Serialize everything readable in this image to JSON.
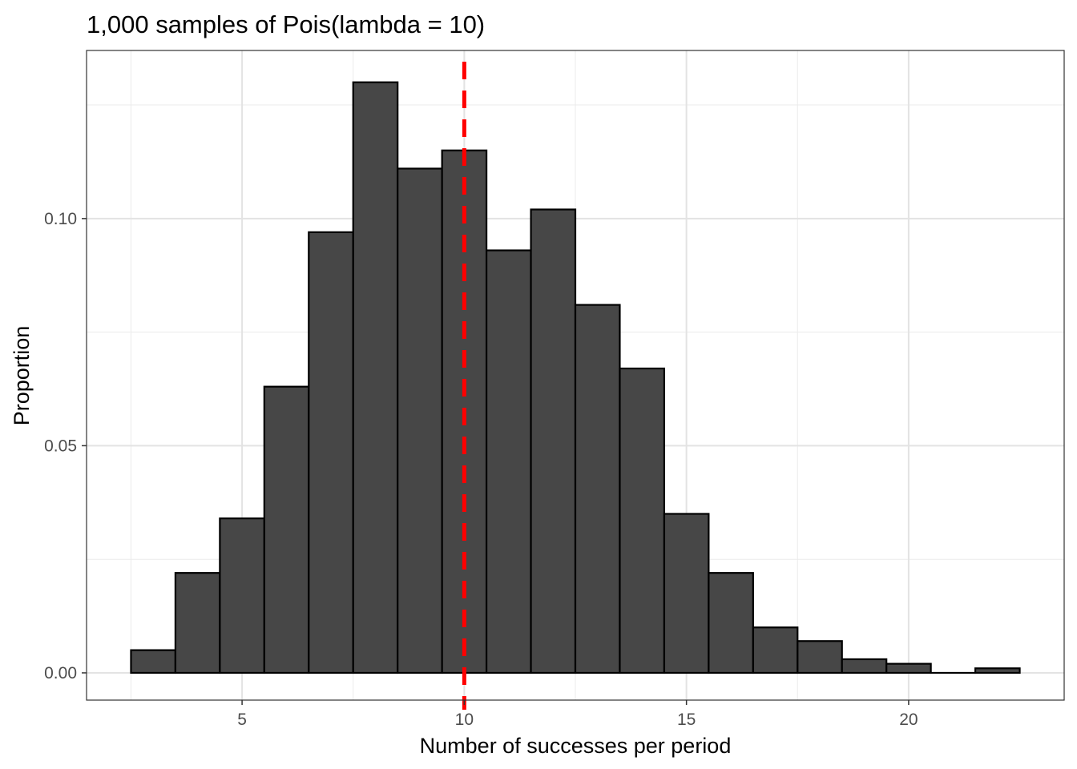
{
  "chart_data": {
    "type": "bar",
    "title": "1,000 samples of Pois(lambda = 10)",
    "xlabel": "Number of successes per period",
    "ylabel": "Proportion",
    "x": [
      3,
      4,
      5,
      6,
      7,
      8,
      9,
      10,
      11,
      12,
      13,
      14,
      15,
      16,
      17,
      18,
      19,
      20,
      21,
      22
    ],
    "values": [
      0.005,
      0.022,
      0.034,
      0.063,
      0.097,
      0.13,
      0.111,
      0.115,
      0.093,
      0.102,
      0.081,
      0.067,
      0.035,
      0.022,
      0.01,
      0.007,
      0.003,
      0.002,
      0.0,
      0.001
    ],
    "xlim": [
      1.5,
      23.5
    ],
    "ylim": [
      -0.006,
      0.137
    ],
    "x_ticks": [
      5,
      10,
      15,
      20
    ],
    "x_tick_labels": [
      "5",
      "10",
      "15",
      "20"
    ],
    "y_ticks": [
      0.0,
      0.05,
      0.1
    ],
    "y_tick_labels": [
      "0.00",
      "0.05",
      "0.10"
    ],
    "reference_line": {
      "x": 10,
      "color": "#ff0000",
      "style": "dashed"
    },
    "bar_fill": "#474747",
    "bar_stroke": "#000000",
    "grid": true,
    "legend": "none"
  }
}
